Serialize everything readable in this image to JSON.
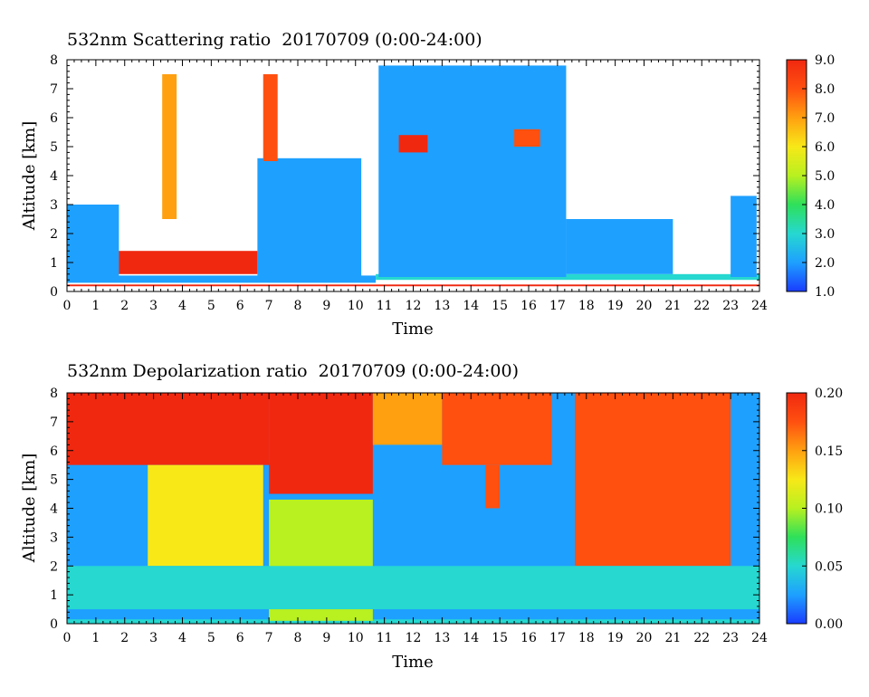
{
  "chart_data": [
    {
      "type": "heatmap",
      "title": "532nm Scattering ratio  20170709 (0:00-24:00)",
      "xlabel": "Time",
      "ylabel": "Altitude [km]",
      "xlim": [
        0,
        24
      ],
      "ylim": [
        0,
        8
      ],
      "x_ticks": [
        "0",
        "1",
        "2",
        "3",
        "4",
        "5",
        "6",
        "7",
        "8",
        "9",
        "10",
        "11",
        "12",
        "13",
        "14",
        "15",
        "16",
        "17",
        "18",
        "19",
        "20",
        "21",
        "22",
        "23",
        "24"
      ],
      "y_ticks": [
        "0",
        "1",
        "2",
        "3",
        "4",
        "5",
        "6",
        "7",
        "8"
      ],
      "colorbar": {
        "min": 1.0,
        "max": 9.0,
        "ticks": [
          "1.0",
          "2.0",
          "3.0",
          "4.0",
          "5.0",
          "6.0",
          "7.0",
          "8.0",
          "9.0"
        ]
      },
      "colormap": [
        "#1a3cff",
        "#1ea0ff",
        "#26d8d0",
        "#2ee05a",
        "#b8f020",
        "#f8e818",
        "#ffa010",
        "#ff5010",
        "#f02810"
      ],
      "layers": [
        {
          "x_start": 0.0,
          "x_end": 10.7,
          "y_base": 0.3,
          "y_top": 0.55,
          "value": 2.4
        },
        {
          "x_start": 10.7,
          "x_end": 24.0,
          "y_base": 0.4,
          "y_top": 0.6,
          "value": 2.6
        },
        {
          "x_start": 1.7,
          "x_end": 6.6,
          "y_base": 0.6,
          "y_top": 1.4,
          "value": 8.5
        },
        {
          "x_start": 0.0,
          "x_end": 1.8,
          "y_base": 0.5,
          "y_top": 3.0,
          "value": 1.8
        },
        {
          "x_start": 6.6,
          "x_end": 10.2,
          "y_base": 0.4,
          "y_top": 4.6,
          "value": 1.5
        },
        {
          "x_start": 10.8,
          "x_end": 17.3,
          "y_base": 0.5,
          "y_top": 7.8,
          "value": 1.6
        },
        {
          "x_start": 17.3,
          "x_end": 21.0,
          "y_base": 0.6,
          "y_top": 2.5,
          "value": 2.2
        },
        {
          "x_start": 23.0,
          "x_end": 23.9,
          "y_base": 0.5,
          "y_top": 3.3,
          "value": 1.9
        },
        {
          "x_start": 6.8,
          "x_end": 7.3,
          "y_base": 4.5,
          "y_top": 7.5,
          "value": 8.0
        },
        {
          "x_start": 3.3,
          "x_end": 3.8,
          "y_base": 2.5,
          "y_top": 7.5,
          "value": 6.5
        },
        {
          "x_start": 11.5,
          "x_end": 12.5,
          "y_base": 4.8,
          "y_top": 5.4,
          "value": 8.5
        },
        {
          "x_start": 15.5,
          "x_end": 16.4,
          "y_base": 5.0,
          "y_top": 5.6,
          "value": 8.0
        },
        {
          "x_start": 0.0,
          "x_end": 24.0,
          "y_base": 0.18,
          "y_top": 0.24,
          "value": 8.8
        }
      ]
    },
    {
      "type": "heatmap",
      "title": "532nm Depolarization ratio  20170709 (0:00-24:00)",
      "xlabel": "Time",
      "ylabel": "Altitude [km]",
      "xlim": [
        0,
        24
      ],
      "ylim": [
        0,
        8
      ],
      "x_ticks": [
        "0",
        "1",
        "2",
        "3",
        "4",
        "5",
        "6",
        "7",
        "8",
        "9",
        "10",
        "11",
        "12",
        "13",
        "14",
        "15",
        "16",
        "17",
        "18",
        "19",
        "20",
        "21",
        "22",
        "23",
        "24"
      ],
      "y_ticks": [
        "0",
        "1",
        "2",
        "3",
        "4",
        "5",
        "6",
        "7",
        "8"
      ],
      "colorbar": {
        "min": 0.0,
        "max": 0.2,
        "ticks": [
          "0.00",
          "0.05",
          "0.10",
          "0.15",
          "0.20"
        ]
      },
      "colormap": [
        "#1a3cff",
        "#1ea0ff",
        "#26d8d0",
        "#2ee05a",
        "#b8f020",
        "#f8e818",
        "#ffa010",
        "#ff5010",
        "#f02810"
      ],
      "layers": [
        {
          "x_start": 0.0,
          "x_end": 24.0,
          "y_base": 0.0,
          "y_top": 8.0,
          "value": 0.02
        },
        {
          "x_start": 0.0,
          "x_end": 24.0,
          "y_base": 0.0,
          "y_top": 0.15,
          "value": 0.06
        },
        {
          "x_start": 0.0,
          "x_end": 7.0,
          "y_base": 5.5,
          "y_top": 8.0,
          "value": 0.19
        },
        {
          "x_start": 2.8,
          "x_end": 6.8,
          "y_base": 2.0,
          "y_top": 5.5,
          "value": 0.12
        },
        {
          "x_start": 7.0,
          "x_end": 10.6,
          "y_base": 4.5,
          "y_top": 8.0,
          "value": 0.19
        },
        {
          "x_start": 7.0,
          "x_end": 10.6,
          "y_base": 0.1,
          "y_top": 4.3,
          "value": 0.09
        },
        {
          "x_start": 10.6,
          "x_end": 13.0,
          "y_base": 6.2,
          "y_top": 8.0,
          "value": 0.16
        },
        {
          "x_start": 13.0,
          "x_end": 16.8,
          "y_base": 5.5,
          "y_top": 8.0,
          "value": 0.17
        },
        {
          "x_start": 14.5,
          "x_end": 15.0,
          "y_base": 4.0,
          "y_top": 5.5,
          "value": 0.17
        },
        {
          "x_start": 17.6,
          "x_end": 23.0,
          "y_base": 2.0,
          "y_top": 8.0,
          "value": 0.18
        },
        {
          "x_start": 0.0,
          "x_end": 24.0,
          "y_base": 0.5,
          "y_top": 2.0,
          "value": 0.04
        }
      ]
    }
  ]
}
